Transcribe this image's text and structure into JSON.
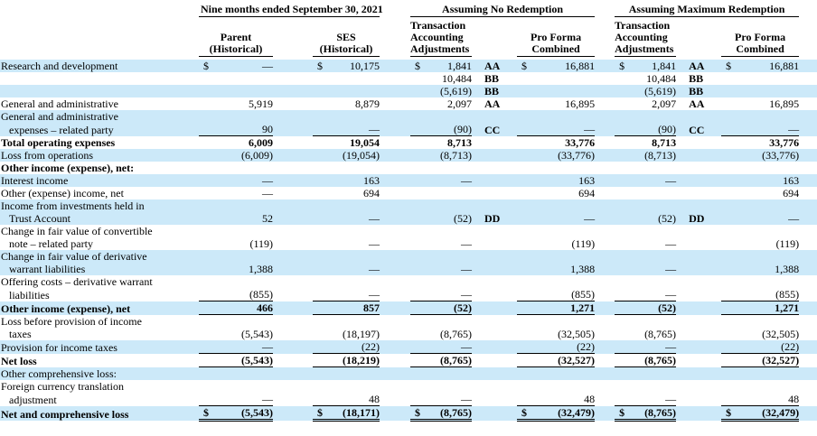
{
  "colors": {
    "row_highlight": "#cce9f9",
    "text": "#000000",
    "rule": "#000000"
  },
  "header": {
    "period_group": "Nine months ended September 30, 2021",
    "no_redemption_group": "Assuming No Redemption",
    "max_redemption_group": "Assuming Maximum Redemption",
    "columns": {
      "parent": [
        "Parent",
        "(Historical)"
      ],
      "ses": [
        "SES",
        "(Historical)"
      ],
      "taa": [
        "Transaction",
        "Accounting",
        "Adjustments"
      ],
      "proforma": [
        "Pro Forma",
        "Combined"
      ]
    }
  },
  "rows": [
    {
      "label": "Research and development",
      "shade": true,
      "cells": [
        {
          "d": "$",
          "v": "—"
        },
        {
          "d": "$",
          "v": "10,175"
        },
        {
          "d": "$",
          "v": "1,841",
          "l": "AA"
        },
        {
          "d": "$",
          "v": "16,881"
        },
        {
          "d": "$",
          "v": "1,841",
          "l": "AA"
        },
        {
          "d": "$",
          "v": "16,881"
        }
      ]
    },
    {
      "label": "",
      "shade": false,
      "cells": [
        {
          "v": ""
        },
        {
          "v": ""
        },
        {
          "v": "10,484",
          "l": "BB"
        },
        {
          "v": ""
        },
        {
          "v": "10,484",
          "l": "BB"
        },
        {
          "v": ""
        }
      ]
    },
    {
      "label": "",
      "shade": true,
      "cells": [
        {
          "v": ""
        },
        {
          "v": ""
        },
        {
          "v": "(5,619)",
          "l": "BB"
        },
        {
          "v": ""
        },
        {
          "v": "(5,619)",
          "l": "BB"
        },
        {
          "v": ""
        }
      ]
    },
    {
      "label": "General and administrative",
      "shade": false,
      "cells": [
        {
          "v": "5,919"
        },
        {
          "v": "8,879"
        },
        {
          "v": "2,097",
          "l": "AA"
        },
        {
          "v": "16,895"
        },
        {
          "v": "2,097",
          "l": "AA"
        },
        {
          "v": "16,895"
        }
      ]
    },
    {
      "label": "General and administrative",
      "shade": true
    },
    {
      "label": "expenses – related party",
      "indent": true,
      "shade": true,
      "rule": "single",
      "cells": [
        {
          "v": "90"
        },
        {
          "v": "—"
        },
        {
          "v": "(90)",
          "l": "CC"
        },
        {
          "v": "—"
        },
        {
          "v": "(90)",
          "l": "CC"
        },
        {
          "v": "—"
        }
      ]
    },
    {
      "label": "Total operating expenses",
      "bold": true,
      "shade": false,
      "cells": [
        {
          "v": "6,009"
        },
        {
          "v": "19,054"
        },
        {
          "v": "8,713"
        },
        {
          "v": "33,776"
        },
        {
          "v": "8,713"
        },
        {
          "v": "33,776"
        }
      ]
    },
    {
      "label": "Loss from operations",
      "shade": true,
      "cells": [
        {
          "v": "(6,009)"
        },
        {
          "v": "(19,054)"
        },
        {
          "v": "(8,713)"
        },
        {
          "v": "(33,776)"
        },
        {
          "v": "(8,713)"
        },
        {
          "v": "(33,776)"
        }
      ]
    },
    {
      "label": "Other income (expense), net:",
      "bold": true,
      "shade": false
    },
    {
      "label": "Interest income",
      "shade": true,
      "cells": [
        {
          "v": "—"
        },
        {
          "v": "163"
        },
        {
          "v": "—"
        },
        {
          "v": "163"
        },
        {
          "v": "—"
        },
        {
          "v": "163"
        }
      ]
    },
    {
      "label": "Other (expense) income, net",
      "shade": false,
      "cells": [
        {
          "v": "—"
        },
        {
          "v": "694"
        },
        {
          "v": ""
        },
        {
          "v": "694"
        },
        {
          "v": ""
        },
        {
          "v": "694"
        }
      ]
    },
    {
      "label": "Income from investments held in",
      "shade": true
    },
    {
      "label": "Trust Account",
      "indent": true,
      "shade": true,
      "cells": [
        {
          "v": "52"
        },
        {
          "v": "—"
        },
        {
          "v": "(52)",
          "l": "DD"
        },
        {
          "v": "—"
        },
        {
          "v": "(52)",
          "l": "DD"
        },
        {
          "v": "—"
        }
      ]
    },
    {
      "label": "Change in fair value of convertible",
      "shade": false
    },
    {
      "label": "note – related party",
      "indent": true,
      "shade": false,
      "cells": [
        {
          "v": "(119)"
        },
        {
          "v": "—"
        },
        {
          "v": "—"
        },
        {
          "v": "(119)"
        },
        {
          "v": "—"
        },
        {
          "v": "(119)"
        }
      ]
    },
    {
      "label": "Change in fair value of derivative",
      "shade": true
    },
    {
      "label": "warrant liabilities",
      "indent": true,
      "shade": true,
      "cells": [
        {
          "v": "1,388"
        },
        {
          "v": "—"
        },
        {
          "v": "—"
        },
        {
          "v": "1,388"
        },
        {
          "v": "—"
        },
        {
          "v": "1,388"
        }
      ]
    },
    {
      "label": "Offering costs – derivative warrant",
      "shade": false
    },
    {
      "label": "liabilities",
      "indent": true,
      "shade": false,
      "rule": "single",
      "cells": [
        {
          "v": "(855)"
        },
        {
          "v": "—"
        },
        {
          "v": "—"
        },
        {
          "v": "(855)"
        },
        {
          "v": "—"
        },
        {
          "v": "(855)"
        }
      ]
    },
    {
      "label": "Other income (expense), net",
      "bold": true,
      "shade": true,
      "rule": "single",
      "cells": [
        {
          "v": "466"
        },
        {
          "v": "857"
        },
        {
          "v": "(52)"
        },
        {
          "v": "1,271"
        },
        {
          "v": "(52)"
        },
        {
          "v": "1,271"
        }
      ]
    },
    {
      "label": "Loss before provision of income",
      "shade": false
    },
    {
      "label": "taxes",
      "indent": true,
      "shade": false,
      "cells": [
        {
          "v": "(5,543)"
        },
        {
          "v": "(18,197)"
        },
        {
          "v": "(8,765)"
        },
        {
          "v": "(32,505)"
        },
        {
          "v": "(8,765)"
        },
        {
          "v": "(32,505)"
        }
      ]
    },
    {
      "label": "Provision for income taxes",
      "shade": true,
      "rule": "single",
      "cells": [
        {
          "v": "—"
        },
        {
          "v": "(22)"
        },
        {
          "v": "—"
        },
        {
          "v": "(22)"
        },
        {
          "v": "—"
        },
        {
          "v": "(22)"
        }
      ]
    },
    {
      "label": "Net loss",
      "bold": true,
      "shade": false,
      "rule": "single",
      "cells": [
        {
          "v": "(5,543)"
        },
        {
          "v": "(18,219)"
        },
        {
          "v": "(8,765)"
        },
        {
          "v": "(32,527)"
        },
        {
          "v": "(8,765)"
        },
        {
          "v": "(32,527)"
        }
      ]
    },
    {
      "label": "Other comprehensive loss:",
      "shade": true
    },
    {
      "label": "Foreign currency translation",
      "shade": false
    },
    {
      "label": "adjustment",
      "indent": true,
      "shade": false,
      "rule": "single",
      "cells": [
        {
          "v": "—"
        },
        {
          "v": "48"
        },
        {
          "v": "—"
        },
        {
          "v": "48"
        },
        {
          "v": "—"
        },
        {
          "v": "48"
        }
      ]
    },
    {
      "label": "Net and comprehensive loss",
      "bold": true,
      "shade": true,
      "rule": "double",
      "cells": [
        {
          "d": "$",
          "v": "(5,543)"
        },
        {
          "d": "$",
          "v": "(18,171)"
        },
        {
          "d": "$",
          "v": "(8,765)"
        },
        {
          "d": "$",
          "v": "(32,479)"
        },
        {
          "d": "$",
          "v": "(8,765)"
        },
        {
          "d": "$",
          "v": "(32,479)"
        }
      ]
    }
  ]
}
